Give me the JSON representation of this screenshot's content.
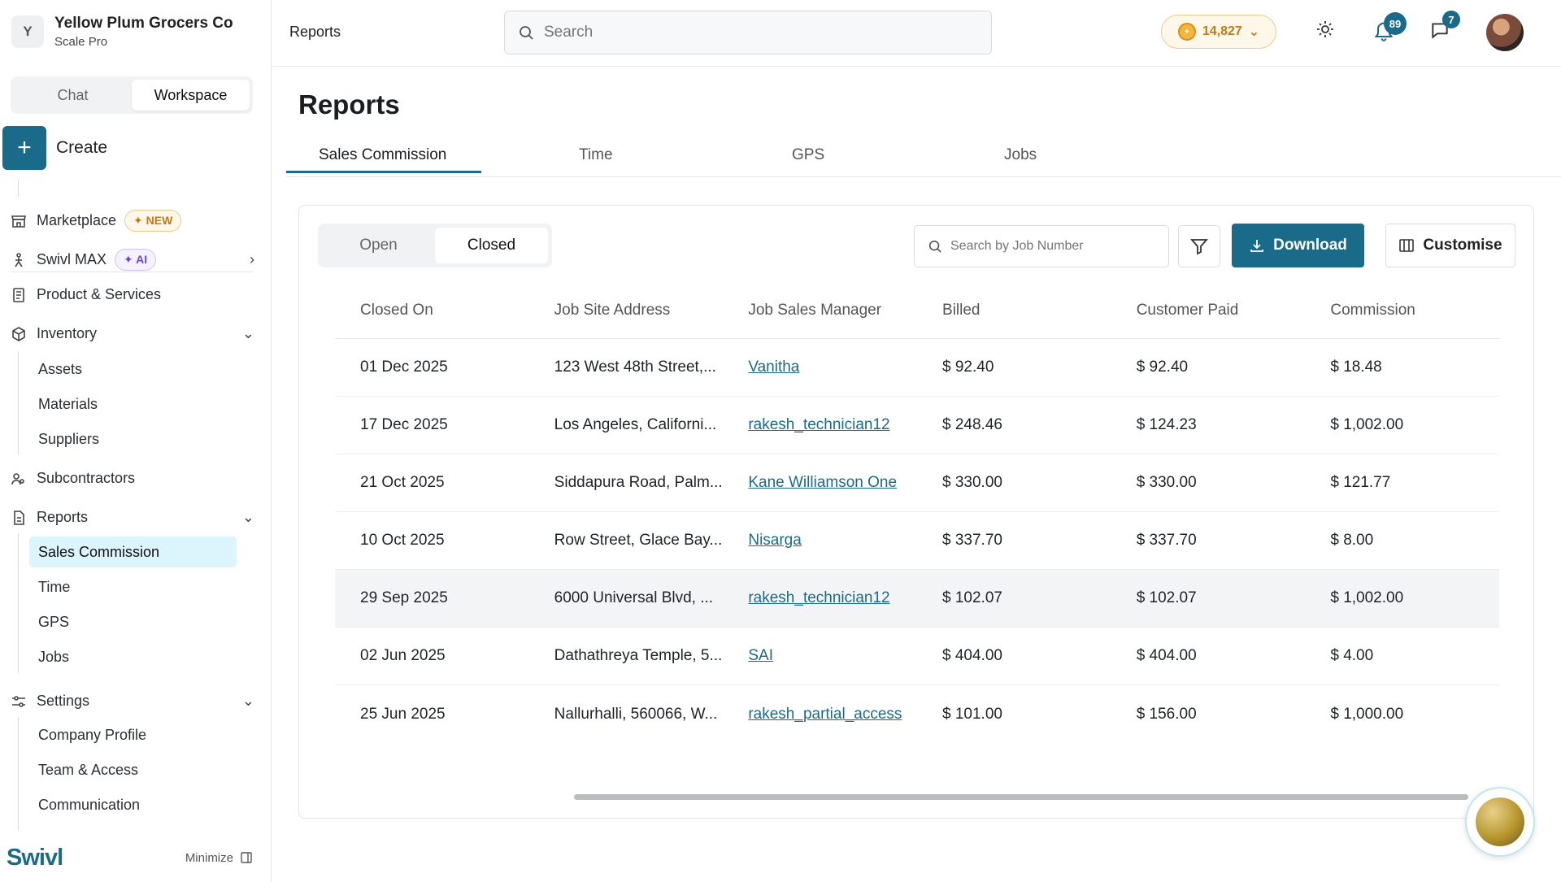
{
  "org": {
    "initial": "Y",
    "name": "Yellow Plum Grocers Co",
    "plan": "Scale Pro"
  },
  "mode_tabs": [
    "Chat",
    "Workspace"
  ],
  "create_label": "Create",
  "nav": {
    "marketplace": "Marketplace",
    "marketplace_badge": "NEW",
    "swivl_max": "Swivl MAX",
    "swivl_max_badge": "AI",
    "products": "Product & Services",
    "inventory": "Inventory",
    "inventory_items": [
      "Assets",
      "Materials",
      "Suppliers"
    ],
    "subcontractors": "Subcontractors",
    "reports": "Reports",
    "reports_items": [
      "Sales Commission",
      "Time",
      "GPS",
      "Jobs"
    ],
    "settings": "Settings",
    "settings_items": [
      "Company Profile",
      "Team & Access",
      "Communication"
    ]
  },
  "footer": {
    "brand": "Swivl",
    "minimize": "Minimize"
  },
  "topbar": {
    "breadcrumb": "Reports",
    "search_placeholder": "Search",
    "coins": "14,827",
    "notifications": "89",
    "messages": "7"
  },
  "page": {
    "title": "Reports",
    "tabs": [
      "Sales Commission",
      "Time",
      "GPS",
      "Jobs"
    ],
    "status_tabs": [
      "Open",
      "Closed"
    ],
    "job_search_placeholder": "Search by Job Number",
    "download": "Download",
    "customise": "Customise"
  },
  "table": {
    "headers": [
      "Closed On",
      "Job Site Address",
      "Job Sales Manager",
      "Billed",
      "Customer Paid",
      "Commission"
    ],
    "rows": [
      [
        "01 Dec 2025",
        "123 West 48th Street,...",
        "Vanitha",
        "$ 92.40",
        "$ 92.40",
        "$ 18.48"
      ],
      [
        "17 Dec 2025",
        "Los Angeles, Californi...",
        "rakesh_technician12",
        "$ 248.46",
        "$ 124.23",
        "$ 1,002.00"
      ],
      [
        "21 Oct 2025",
        "Siddapura Road, Palm...",
        "Kane Williamson One",
        "$ 330.00",
        "$ 330.00",
        "$ 121.77"
      ],
      [
        "10 Oct 2025",
        "Row Street, Glace Bay...",
        "Nisarga",
        "$ 337.70",
        "$ 337.70",
        "$ 8.00"
      ],
      [
        "29 Sep 2025",
        "6000 Universal Blvd, ...",
        "rakesh_technician12",
        "$ 102.07",
        "$ 102.07",
        "$ 1,002.00"
      ],
      [
        "02 Jun 2025",
        "Dathathreya Temple, 5...",
        "SAI",
        "$ 404.00",
        "$ 404.00",
        "$ 4.00"
      ],
      [
        "25 Jun 2025",
        "Nallurhalli, 560066, W...",
        "rakesh_partial_access",
        "$ 101.00",
        "$ 156.00",
        "$ 1,000.00"
      ]
    ]
  },
  "colors": {
    "accent": "#1a6b8a",
    "active_nav_bg": "#dcf4fb",
    "coin": "#c27a12"
  }
}
